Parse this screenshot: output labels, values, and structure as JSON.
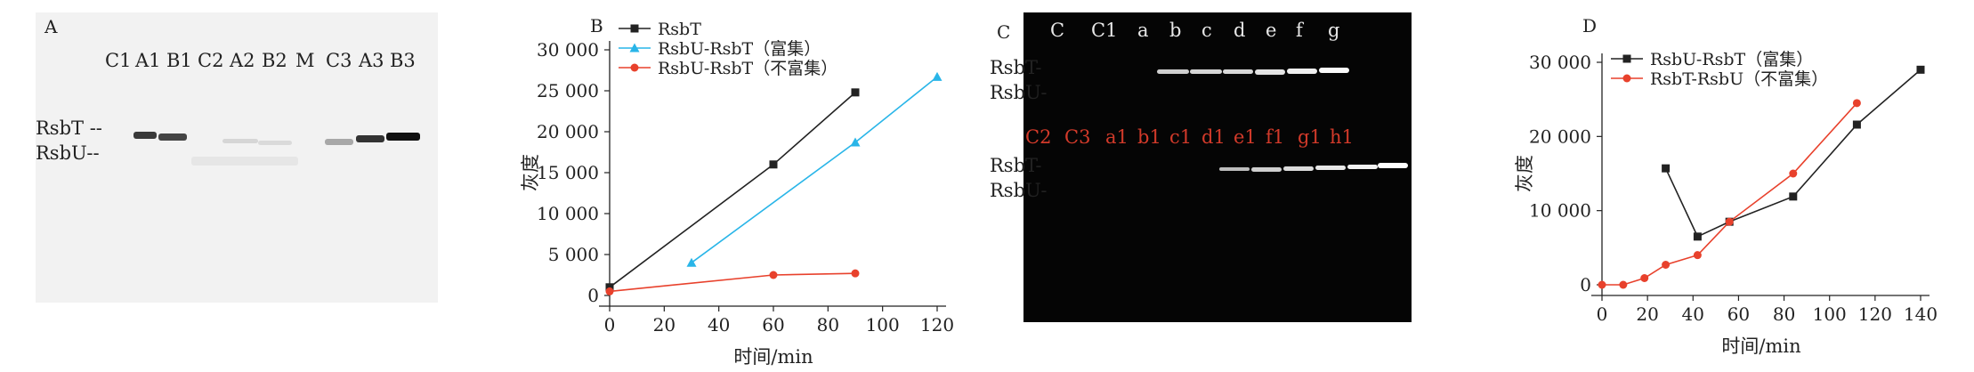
{
  "panel_a": {
    "letter": "A",
    "lanes": [
      "C1",
      "A1",
      "B1",
      "C2",
      "A2",
      "B2",
      "M",
      "C3",
      "A3",
      "B3"
    ],
    "markers": [
      "RsbT --",
      "RsbU--"
    ]
  },
  "panel_c": {
    "letter": "C",
    "top_lanes": [
      "C",
      "C1",
      "a",
      "b",
      "c",
      "d",
      "e",
      "f",
      "g"
    ],
    "red_lanes": [
      "C2",
      "C3",
      "a1",
      "b1",
      "c1",
      "d1",
      "e1",
      "f1",
      "g1",
      "h1"
    ],
    "markers_top": [
      "RsbT-",
      "RsbU-"
    ],
    "markers_bottom": [
      "RsbT-",
      "RsbU-"
    ]
  },
  "chart_data": [
    {
      "panel": "B",
      "type": "line",
      "xlabel": "时间/min",
      "ylabel": "灰度",
      "xlim": [
        0,
        120
      ],
      "ylim": [
        0,
        30000
      ],
      "xticks": [
        "0",
        "20",
        "40",
        "60",
        "80",
        "100",
        "120"
      ],
      "yticks": [
        "0",
        "5 000",
        "10 000",
        "15 000",
        "20 000",
        "25 000",
        "30 000"
      ],
      "legend_position": "top-left",
      "grid": false,
      "series": [
        {
          "name": "RsbT",
          "color": "#222222",
          "marker": "square",
          "x": [
            0,
            60,
            90
          ],
          "y": [
            1000,
            16000,
            24800
          ]
        },
        {
          "name": "RsbU-RsbT（富集）",
          "color": "#29b5e8",
          "marker": "triangle",
          "x": [
            30,
            90,
            120
          ],
          "y": [
            4000,
            18700,
            26700
          ]
        },
        {
          "name": "RsbU-RsbT（不富集）",
          "color": "#e8412c",
          "marker": "circle",
          "x": [
            0,
            60,
            90
          ],
          "y": [
            500,
            2500,
            2700
          ]
        }
      ]
    },
    {
      "panel": "D",
      "type": "line",
      "xlabel": "时间/min",
      "ylabel": "灰度",
      "xlim": [
        0,
        150
      ],
      "ylim": [
        0,
        30000
      ],
      "xticks": [
        "0",
        "20",
        "40",
        "60",
        "80",
        "100",
        "120",
        "140"
      ],
      "yticks": [
        "0",
        "10 000",
        "20 000",
        "30 000"
      ],
      "legend_position": "top-left",
      "grid": false,
      "series": [
        {
          "name": "RsbU-RsbT（富集）",
          "color": "#222222",
          "marker": "square",
          "x": [
            30,
            45,
            60,
            90,
            120,
            150
          ],
          "y": [
            15700,
            6500,
            8500,
            11900,
            21600,
            29000
          ]
        },
        {
          "name": "RsbT-RsbU（不富集）",
          "color": "#e8412c",
          "marker": "circle",
          "x": [
            0,
            10,
            20,
            30,
            45,
            60,
            90,
            120
          ],
          "y": [
            0,
            0,
            900,
            2700,
            4000,
            8500,
            15000,
            24500
          ]
        }
      ]
    }
  ]
}
